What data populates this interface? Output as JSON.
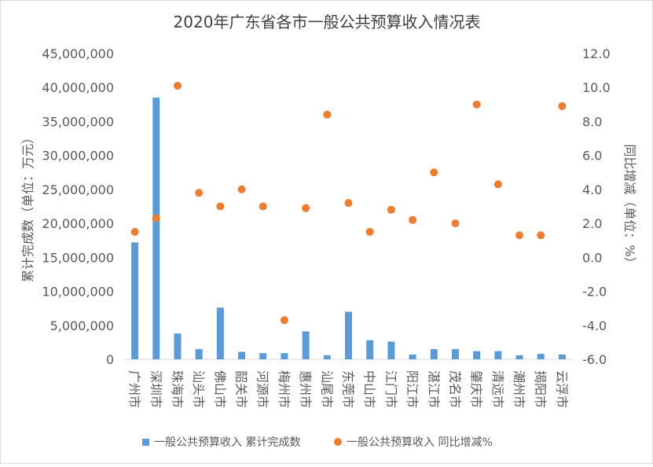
{
  "chart_data": {
    "type": "bar",
    "title": "2020年广东省各市一般公共预算收入情况表",
    "y_left_label": "累计完成数（单位：万元）",
    "y_right_label": "同比增减（单位：%）",
    "categories": [
      "广州市",
      "深圳市",
      "珠海市",
      "汕头市",
      "佛山市",
      "韶关市",
      "河源市",
      "梅州市",
      "惠州市",
      "汕尾市",
      "东莞市",
      "中山市",
      "江门市",
      "阳江市",
      "湛江市",
      "茂名市",
      "肇庆市",
      "清远市",
      "潮州市",
      "揭阳市",
      "云浮市"
    ],
    "series": [
      {
        "name": "一般公共预算收入 累计完成数",
        "type": "bar",
        "axis": "left",
        "color": "#5b9bd5",
        "values": [
          17200000,
          38500000,
          3800000,
          1500000,
          7600000,
          1100000,
          900000,
          900000,
          4100000,
          600000,
          7000000,
          2800000,
          2600000,
          700000,
          1500000,
          1500000,
          1200000,
          1200000,
          600000,
          800000,
          700000
        ]
      },
      {
        "name": "一般公共预算收入 同比增减%",
        "type": "scatter",
        "axis": "right",
        "color": "#ed7d31",
        "values": [
          1.5,
          2.3,
          10.1,
          3.8,
          3.0,
          4.0,
          3.0,
          -3.7,
          2.9,
          8.4,
          3.2,
          1.5,
          2.8,
          2.2,
          5.0,
          2.0,
          9.0,
          4.3,
          1.3,
          1.3,
          8.9
        ]
      }
    ],
    "y_left_ticks": [
      "0",
      "5,000,000",
      "10,000,000",
      "15,000,000",
      "20,000,000",
      "25,000,000",
      "30,000,000",
      "35,000,000",
      "40,000,000",
      "45,000,000"
    ],
    "y_right_ticks": [
      "-6.0",
      "-4.0",
      "-2.0",
      "0.0",
      "2.0",
      "4.0",
      "6.0",
      "8.0",
      "10.0",
      "12.0"
    ],
    "ylim_left": [
      0,
      45000000
    ],
    "ylim_right": [
      -6,
      12
    ],
    "grid": false,
    "legend_position": "bottom"
  }
}
